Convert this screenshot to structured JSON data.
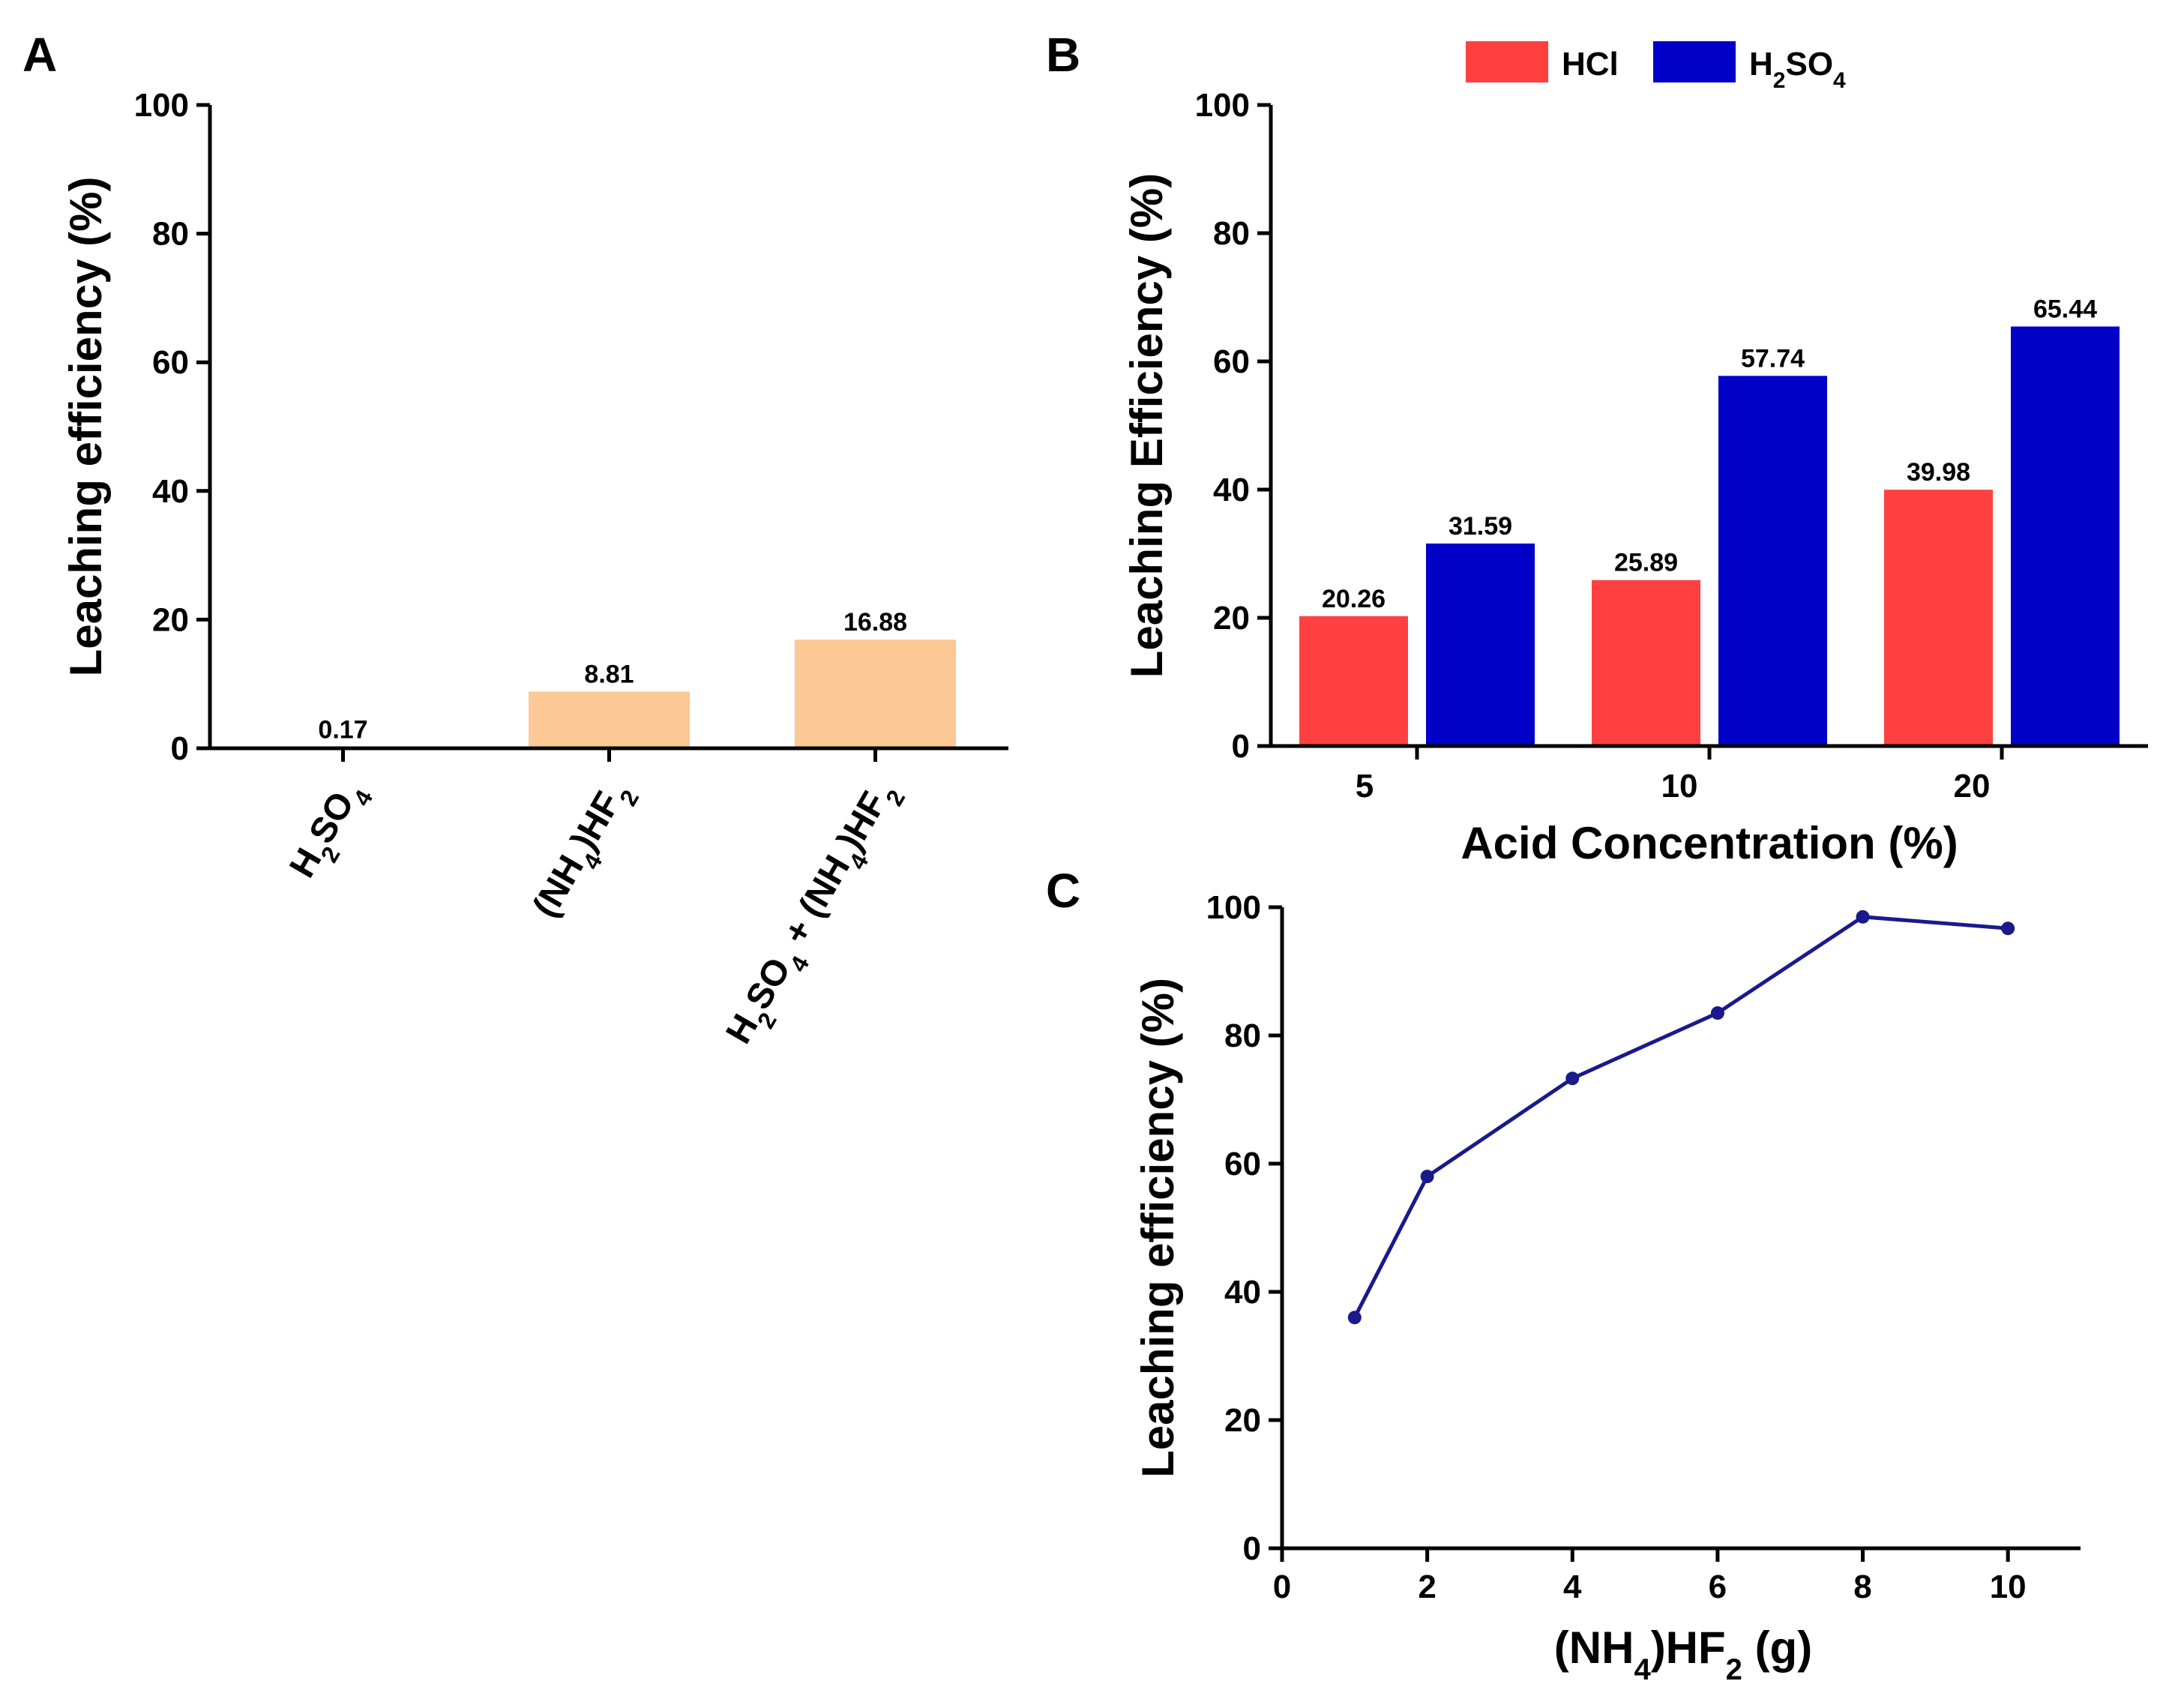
{
  "chart_data": [
    {
      "panel": "A",
      "type": "bar",
      "categories": [
        "H2SO4",
        "(NH4)HF2",
        "H2SO4 + (NH4)HF2"
      ],
      "category_labels": [
        [
          {
            "t": "H"
          },
          {
            "t": "2",
            "s": "sub"
          },
          {
            "t": "SO"
          },
          {
            "t": "4",
            "s": "sub"
          }
        ],
        [
          {
            "t": "(NH"
          },
          {
            "t": "4",
            "s": "sub"
          },
          {
            "t": ")HF"
          },
          {
            "t": "2",
            "s": "sub"
          }
        ],
        [
          {
            "t": "H"
          },
          {
            "t": "2",
            "s": "sub"
          },
          {
            "t": "SO"
          },
          {
            "t": "4",
            "s": "sub"
          },
          {
            "t": " + (NH"
          },
          {
            "t": "4",
            "s": "sub"
          },
          {
            "t": ")HF"
          },
          {
            "t": "2",
            "s": "sub"
          }
        ]
      ],
      "values": [
        0.17,
        8.81,
        16.88
      ],
      "data_labels": [
        "0.17",
        "8.81",
        "16.88"
      ],
      "bar_color": "#fcc896",
      "ylabel": "Leaching efficiency (%)",
      "xlabel": "",
      "ylim": [
        0,
        100
      ],
      "yticks": [
        0,
        20,
        40,
        60,
        80,
        100
      ]
    },
    {
      "panel": "B",
      "type": "bar",
      "categories": [
        "5",
        "10",
        "20"
      ],
      "series": [
        {
          "name": "HCl",
          "values": [
            20.26,
            25.89,
            39.98
          ],
          "data_labels": [
            "20.26",
            "25.89",
            "39.98"
          ],
          "color": "#ff4040"
        },
        {
          "name": "H2SO4",
          "legend_label": [
            {
              "t": "H"
            },
            {
              "t": "2",
              "s": "sub"
            },
            {
              "t": "SO"
            },
            {
              "t": "4",
              "s": "sub"
            }
          ],
          "values": [
            31.59,
            57.74,
            65.44
          ],
          "data_labels": [
            "31.59",
            "57.74",
            "65.44"
          ],
          "color": "#0000c8"
        }
      ],
      "ylabel": "Leaching Efficiency (%)",
      "xlabel": "Acid Concentration (%)",
      "ylim": [
        0,
        100
      ],
      "yticks": [
        0,
        20,
        40,
        60,
        80,
        100
      ],
      "legend": "top"
    },
    {
      "panel": "C",
      "type": "line",
      "x": [
        1,
        2,
        4,
        6,
        8,
        10
      ],
      "values": [
        36,
        58,
        73.3,
        83.5,
        98.5,
        96.7
      ],
      "color": "#1a1a8c",
      "ylabel": "Leaching efficiency (%)",
      "xlabel": "(NH4)HF2 (g)",
      "xlabel_parts": [
        {
          "t": "(NH"
        },
        {
          "t": "4",
          "s": "sub"
        },
        {
          "t": ")HF"
        },
        {
          "t": "2",
          "s": "sub"
        },
        {
          "t": " (g)"
        }
      ],
      "xlim": [
        0,
        11
      ],
      "ylim": [
        0,
        100
      ],
      "xticks": [
        0,
        2,
        4,
        6,
        8,
        10
      ],
      "yticks": [
        0,
        20,
        40,
        60,
        80,
        100
      ]
    }
  ]
}
